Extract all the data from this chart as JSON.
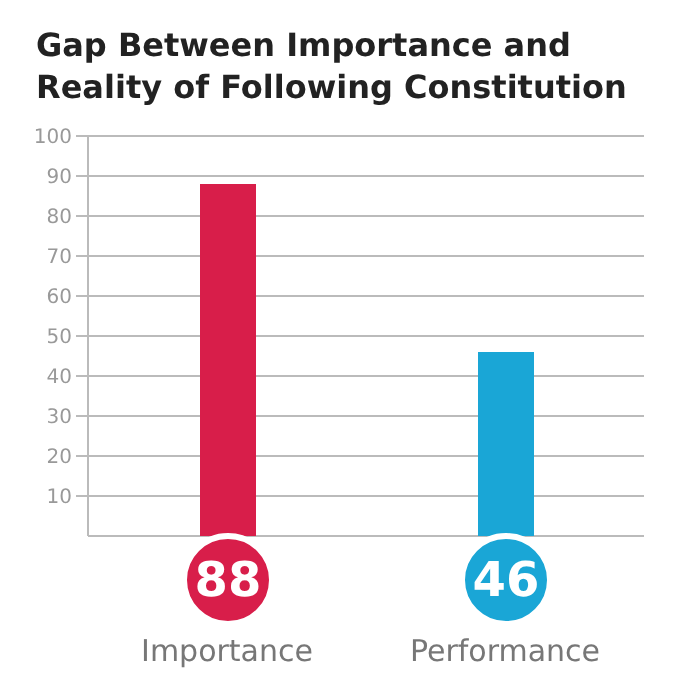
{
  "chart_data": {
    "type": "bar",
    "title": "Gap Between Importance and Reality of Following Constitution",
    "categories": [
      "Importance",
      "Performance"
    ],
    "values": [
      88,
      46
    ],
    "colors": [
      "#d81e4a",
      "#1aa6d6"
    ],
    "ylim": [
      0,
      100
    ],
    "yticks": [
      10,
      20,
      30,
      40,
      50,
      60,
      70,
      80,
      90,
      100
    ],
    "grid": "y",
    "data_labels": true
  }
}
